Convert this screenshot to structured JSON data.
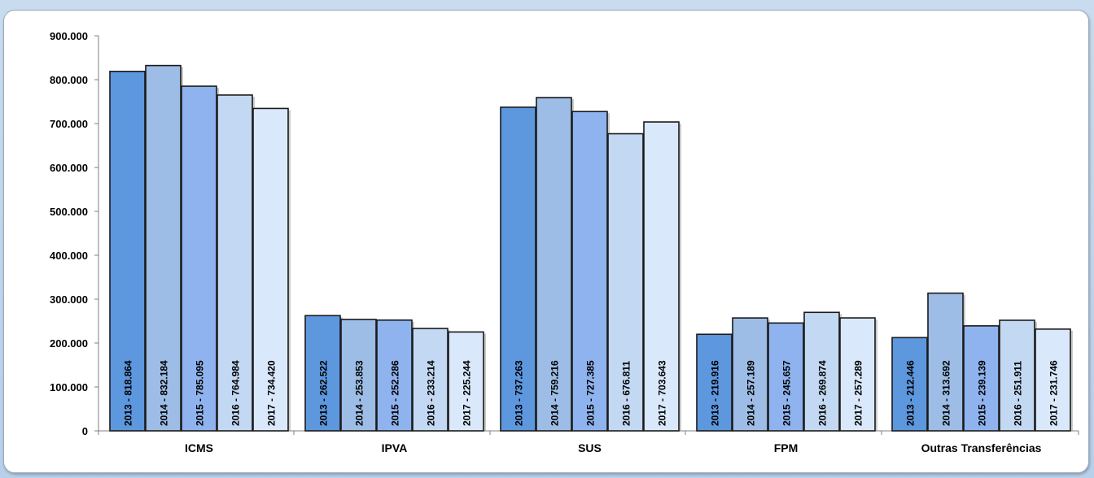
{
  "chart_data": {
    "type": "bar",
    "categories": [
      "ICMS",
      "IPVA",
      "SUS",
      "FPM",
      "Outras Transferências"
    ],
    "series": [
      {
        "year": "2013",
        "color": "#5d97de",
        "values": [
          818864,
          262522,
          737263,
          219916,
          212446
        ]
      },
      {
        "year": "2014",
        "color": "#9dbde6",
        "values": [
          832184,
          253853,
          759216,
          257189,
          313692
        ]
      },
      {
        "year": "2015",
        "color": "#8fb3ee",
        "values": [
          785095,
          252286,
          727385,
          245657,
          239139
        ]
      },
      {
        "year": "2016",
        "color": "#c3d8f2",
        "values": [
          764984,
          233214,
          676811,
          269874,
          251911
        ]
      },
      {
        "year": "2017",
        "color": "#d9e8fb",
        "values": [
          734420,
          225244,
          703643,
          257289,
          231746
        ]
      }
    ],
    "bar_labels": [
      [
        "2013 - 818.864",
        "2014 - 832.184",
        "2015 - 785.095",
        "2016 - 764.984",
        "2017 - 734.420"
      ],
      [
        "2013 - 262.522",
        "2014 - 253.853",
        "2015 - 252.286",
        "2016 - 233.214",
        "2017 - 225.244"
      ],
      [
        "2013 - 737.263",
        "2014 - 759.216",
        "2015 - 727.385",
        "2016 - 676.811",
        "2017 - 703.643"
      ],
      [
        "2013 - 219.916",
        "2014 - 257.189",
        "2015 - 245.657",
        "2016 - 269.874",
        "2017 - 257.289"
      ],
      [
        "2013 - 212.446",
        "2014 - 313.692",
        "2015 - 239.139",
        "2016 - 251.911",
        "2017 - 231.746"
      ]
    ],
    "y_ticks": [
      {
        "value": 0,
        "label": "0"
      },
      {
        "value": 100000,
        "label": "100.000"
      },
      {
        "value": 200000,
        "label": "200.000"
      },
      {
        "value": 300000,
        "label": "300.000"
      },
      {
        "value": 400000,
        "label": "400.000"
      },
      {
        "value": 500000,
        "label": "500.000"
      },
      {
        "value": 600000,
        "label": "600.000"
      },
      {
        "value": 700000,
        "label": "700.000"
      },
      {
        "value": 800000,
        "label": "800.000"
      },
      {
        "value": 900000,
        "label": "900.000"
      }
    ],
    "ylim": [
      0,
      900000
    ],
    "title": "",
    "xlabel": "",
    "ylabel": "",
    "grid": false,
    "legend": "none"
  }
}
